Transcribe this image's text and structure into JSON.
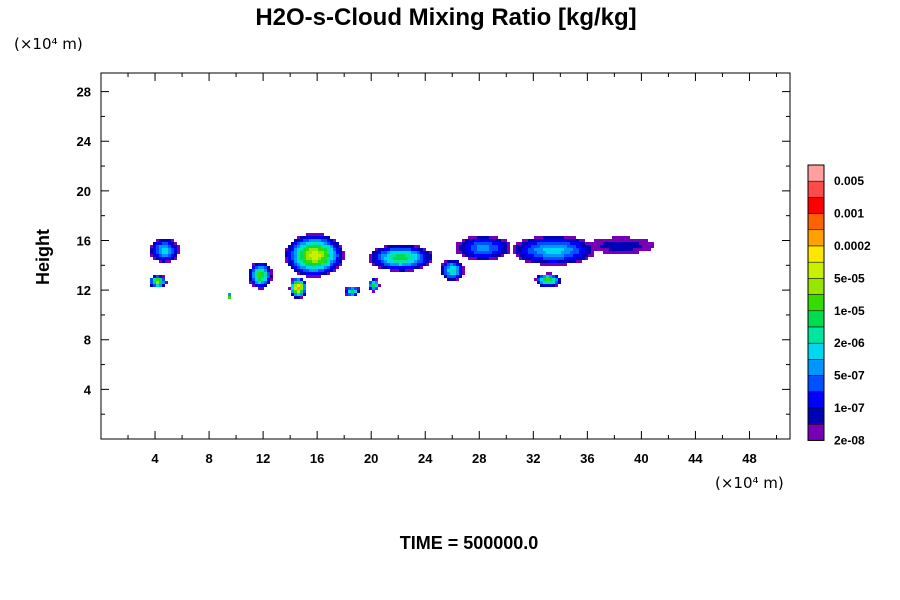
{
  "chart_data": {
    "type": "contour",
    "title": "H2O-s-Cloud Mixing Ratio [kg/kg]",
    "ylabel": "Height",
    "x_unit": "(×10⁴ m)",
    "y_unit": "(×10⁴ m)",
    "xlim": [
      0,
      51
    ],
    "ylim": [
      0,
      29.5
    ],
    "x_ticks": [
      4,
      8,
      12,
      16,
      20,
      24,
      28,
      32,
      36,
      40,
      44,
      48
    ],
    "x_tick_labels": [
      "4",
      "8",
      "12",
      "16",
      "20",
      "24",
      "28",
      "32",
      "36",
      "40",
      "44",
      "48"
    ],
    "y_ticks": [
      4,
      8,
      12,
      16,
      20,
      24,
      28
    ],
    "y_tick_labels": [
      "4",
      "8",
      "12",
      "16",
      "20",
      "24",
      "28"
    ],
    "footer": "TIME = 500000.0",
    "colorbar": {
      "colors": [
        "#ff9f9f",
        "#ff4a4a",
        "#ff0000",
        "#ff6200",
        "#ffa200",
        "#ffe600",
        "#c8f000",
        "#96e600",
        "#36dc00",
        "#00dc50",
        "#00e6a0",
        "#00d7f0",
        "#0096ff",
        "#0050ff",
        "#0000ff",
        "#0000b4",
        "#7800b4"
      ],
      "labels": [
        {
          "text": "0.005",
          "level": 1
        },
        {
          "text": "0.001",
          "level": 3
        },
        {
          "text": "0.0002",
          "level": 5
        },
        {
          "text": "5e-05",
          "level": 7
        },
        {
          "text": "1e-05",
          "level": 9
        },
        {
          "text": "2e-06",
          "level": 11
        },
        {
          "text": "5e-07",
          "level": 13
        },
        {
          "text": "1e-07",
          "level": 15
        },
        {
          "text": "2e-08",
          "level": 17
        }
      ]
    },
    "clouds": [
      {
        "x": 4.7,
        "y": 15.2,
        "sx": 1.0,
        "sy": 0.9,
        "peak": 11
      },
      {
        "x": 4.2,
        "y": 12.7,
        "sx": 0.6,
        "sy": 0.5,
        "peak": 7
      },
      {
        "x": 9.5,
        "y": 11.5,
        "sx": 0.2,
        "sy": 0.2,
        "peak": 5
      },
      {
        "x": 11.8,
        "y": 13.2,
        "sx": 0.8,
        "sy": 1.0,
        "peak": 8
      },
      {
        "x": 15.8,
        "y": 14.8,
        "sx": 2.0,
        "sy": 1.6,
        "peak": 6
      },
      {
        "x": 14.6,
        "y": 12.2,
        "sx": 0.6,
        "sy": 0.8,
        "peak": 4
      },
      {
        "x": 18.6,
        "y": 11.9,
        "sx": 0.5,
        "sy": 0.4,
        "peak": 9
      },
      {
        "x": 20.2,
        "y": 12.4,
        "sx": 0.4,
        "sy": 0.5,
        "peak": 9
      },
      {
        "x": 22.2,
        "y": 14.6,
        "sx": 2.2,
        "sy": 1.0,
        "peak": 9
      },
      {
        "x": 26.0,
        "y": 13.6,
        "sx": 0.8,
        "sy": 0.8,
        "peak": 10
      },
      {
        "x": 28.3,
        "y": 15.4,
        "sx": 1.9,
        "sy": 0.9,
        "peak": 12
      },
      {
        "x": 33.5,
        "y": 15.2,
        "sx": 2.8,
        "sy": 1.1,
        "peak": 11
      },
      {
        "x": 33.1,
        "y": 12.8,
        "sx": 0.9,
        "sy": 0.5,
        "peak": 8
      },
      {
        "x": 38.5,
        "y": 15.6,
        "sx": 2.3,
        "sy": 0.6,
        "peak": 15
      }
    ]
  }
}
